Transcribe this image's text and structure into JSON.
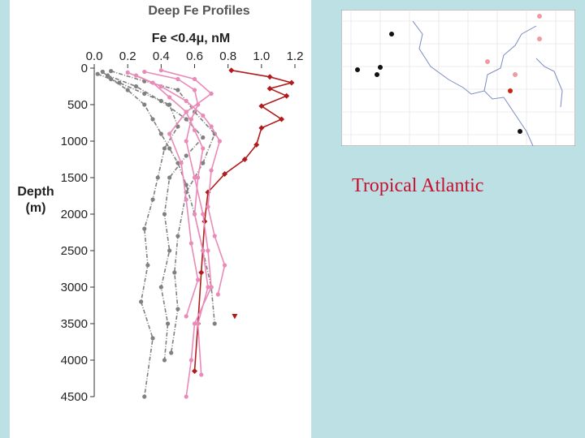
{
  "chart_data": {
    "type": "line",
    "title": "Deep Fe Profiles",
    "xlabel": "Fe  <0.4μ,  nM",
    "ylabel": "Depth\n(m)",
    "xlim": [
      0,
      1.2
    ],
    "xticks": [
      {
        "value": 0,
        "label": "0.0"
      },
      0.2,
      0.4,
      0.6,
      0.8,
      {
        "value": 1,
        "label": "1.0"
      },
      1.2
    ],
    "ylim": [
      0,
      4500
    ],
    "yticks": [
      0,
      500,
      1000,
      1500,
      2000,
      2500,
      3000,
      3500,
      4000,
      4500
    ],
    "y_inverted": true,
    "annotation": "Tropical Atlantic",
    "series": [
      {
        "color": "#b01c1c",
        "dash": "solid",
        "marker": "diamond",
        "x": [
          0.82,
          1.05,
          1.18,
          1.05,
          1.15,
          1.0,
          1.12,
          1.0,
          0.97,
          0.9,
          0.78,
          0.68,
          0.66,
          0.64,
          0.62,
          0.6
        ],
        "values": [
          30,
          120,
          200,
          280,
          380,
          520,
          700,
          820,
          1050,
          1250,
          1450,
          1700,
          2100,
          2800,
          3500,
          4150
        ]
      },
      {
        "color": "#b01c1c",
        "dash": "none",
        "marker": "triangle",
        "x": [
          0.84
        ],
        "values": [
          3400
        ]
      },
      {
        "color": "#808080",
        "dash": "dashdot",
        "marker": "circle",
        "x": [
          0.05,
          0.1,
          0.2,
          0.3,
          0.35,
          0.4,
          0.45,
          0.5,
          0.55,
          0.6,
          0.65,
          0.7,
          0.72
        ],
        "values": [
          50,
          150,
          300,
          500,
          700,
          900,
          1100,
          1300,
          1600,
          2000,
          2500,
          3000,
          3500
        ]
      },
      {
        "color": "#808080",
        "dash": "dashdot",
        "marker": "circle",
        "x": [
          0.02,
          0.15,
          0.3,
          0.45,
          0.5,
          0.42,
          0.38,
          0.35,
          0.3,
          0.32,
          0.28,
          0.35,
          0.3
        ],
        "values": [
          80,
          200,
          350,
          500,
          800,
          1100,
          1500,
          1800,
          2200,
          2700,
          3200,
          3700,
          4500
        ]
      },
      {
        "color": "#808080",
        "dash": "dashdot",
        "marker": "circle",
        "x": [
          0.08,
          0.25,
          0.4,
          0.55,
          0.65,
          0.55,
          0.45,
          0.42,
          0.45,
          0.4,
          0.44,
          0.42
        ],
        "values": [
          100,
          250,
          450,
          700,
          950,
          1200,
          1500,
          2000,
          2500,
          3000,
          3500,
          4000
        ]
      },
      {
        "color": "#808080",
        "dash": "dashdot",
        "marker": "circle",
        "x": [
          0.1,
          0.3,
          0.5,
          0.6,
          0.72,
          0.65,
          0.55,
          0.5,
          0.48,
          0.5,
          0.46
        ],
        "values": [
          40,
          180,
          300,
          600,
          900,
          1300,
          1700,
          2300,
          2800,
          3300,
          3900
        ]
      },
      {
        "color": "#e98ab8",
        "dash": "solid",
        "marker": "circle",
        "x": [
          0.3,
          0.5,
          0.6,
          0.62,
          0.58,
          0.55,
          0.6,
          0.65,
          0.68,
          0.7,
          0.6,
          0.58,
          0.55
        ],
        "values": [
          50,
          150,
          300,
          500,
          700,
          1000,
          1500,
          2000,
          2500,
          3000,
          3500,
          4000,
          4500
        ]
      },
      {
        "color": "#e98ab8",
        "dash": "solid",
        "marker": "circle",
        "x": [
          0.2,
          0.35,
          0.45,
          0.55,
          0.6,
          0.65,
          0.62,
          0.6,
          0.65,
          0.68,
          0.62,
          0.64
        ],
        "values": [
          60,
          200,
          400,
          600,
          850,
          1100,
          1500,
          2000,
          2500,
          3000,
          3500,
          4200
        ]
      },
      {
        "color": "#e98ab8",
        "dash": "solid",
        "marker": "circle",
        "x": [
          0.4,
          0.6,
          0.7,
          0.55,
          0.45,
          0.52,
          0.55,
          0.58,
          0.62,
          0.55
        ],
        "values": [
          30,
          150,
          350,
          600,
          900,
          1300,
          1800,
          2400,
          2900,
          3400
        ]
      },
      {
        "color": "#e98ab8",
        "dash": "solid",
        "marker": "circle",
        "x": [
          0.25,
          0.4,
          0.55,
          0.65,
          0.7,
          0.75,
          0.7,
          0.68,
          0.72,
          0.78,
          0.74
        ],
        "values": [
          100,
          250,
          450,
          650,
          800,
          1000,
          1400,
          1900,
          2300,
          2700,
          3100
        ]
      }
    ]
  }
}
